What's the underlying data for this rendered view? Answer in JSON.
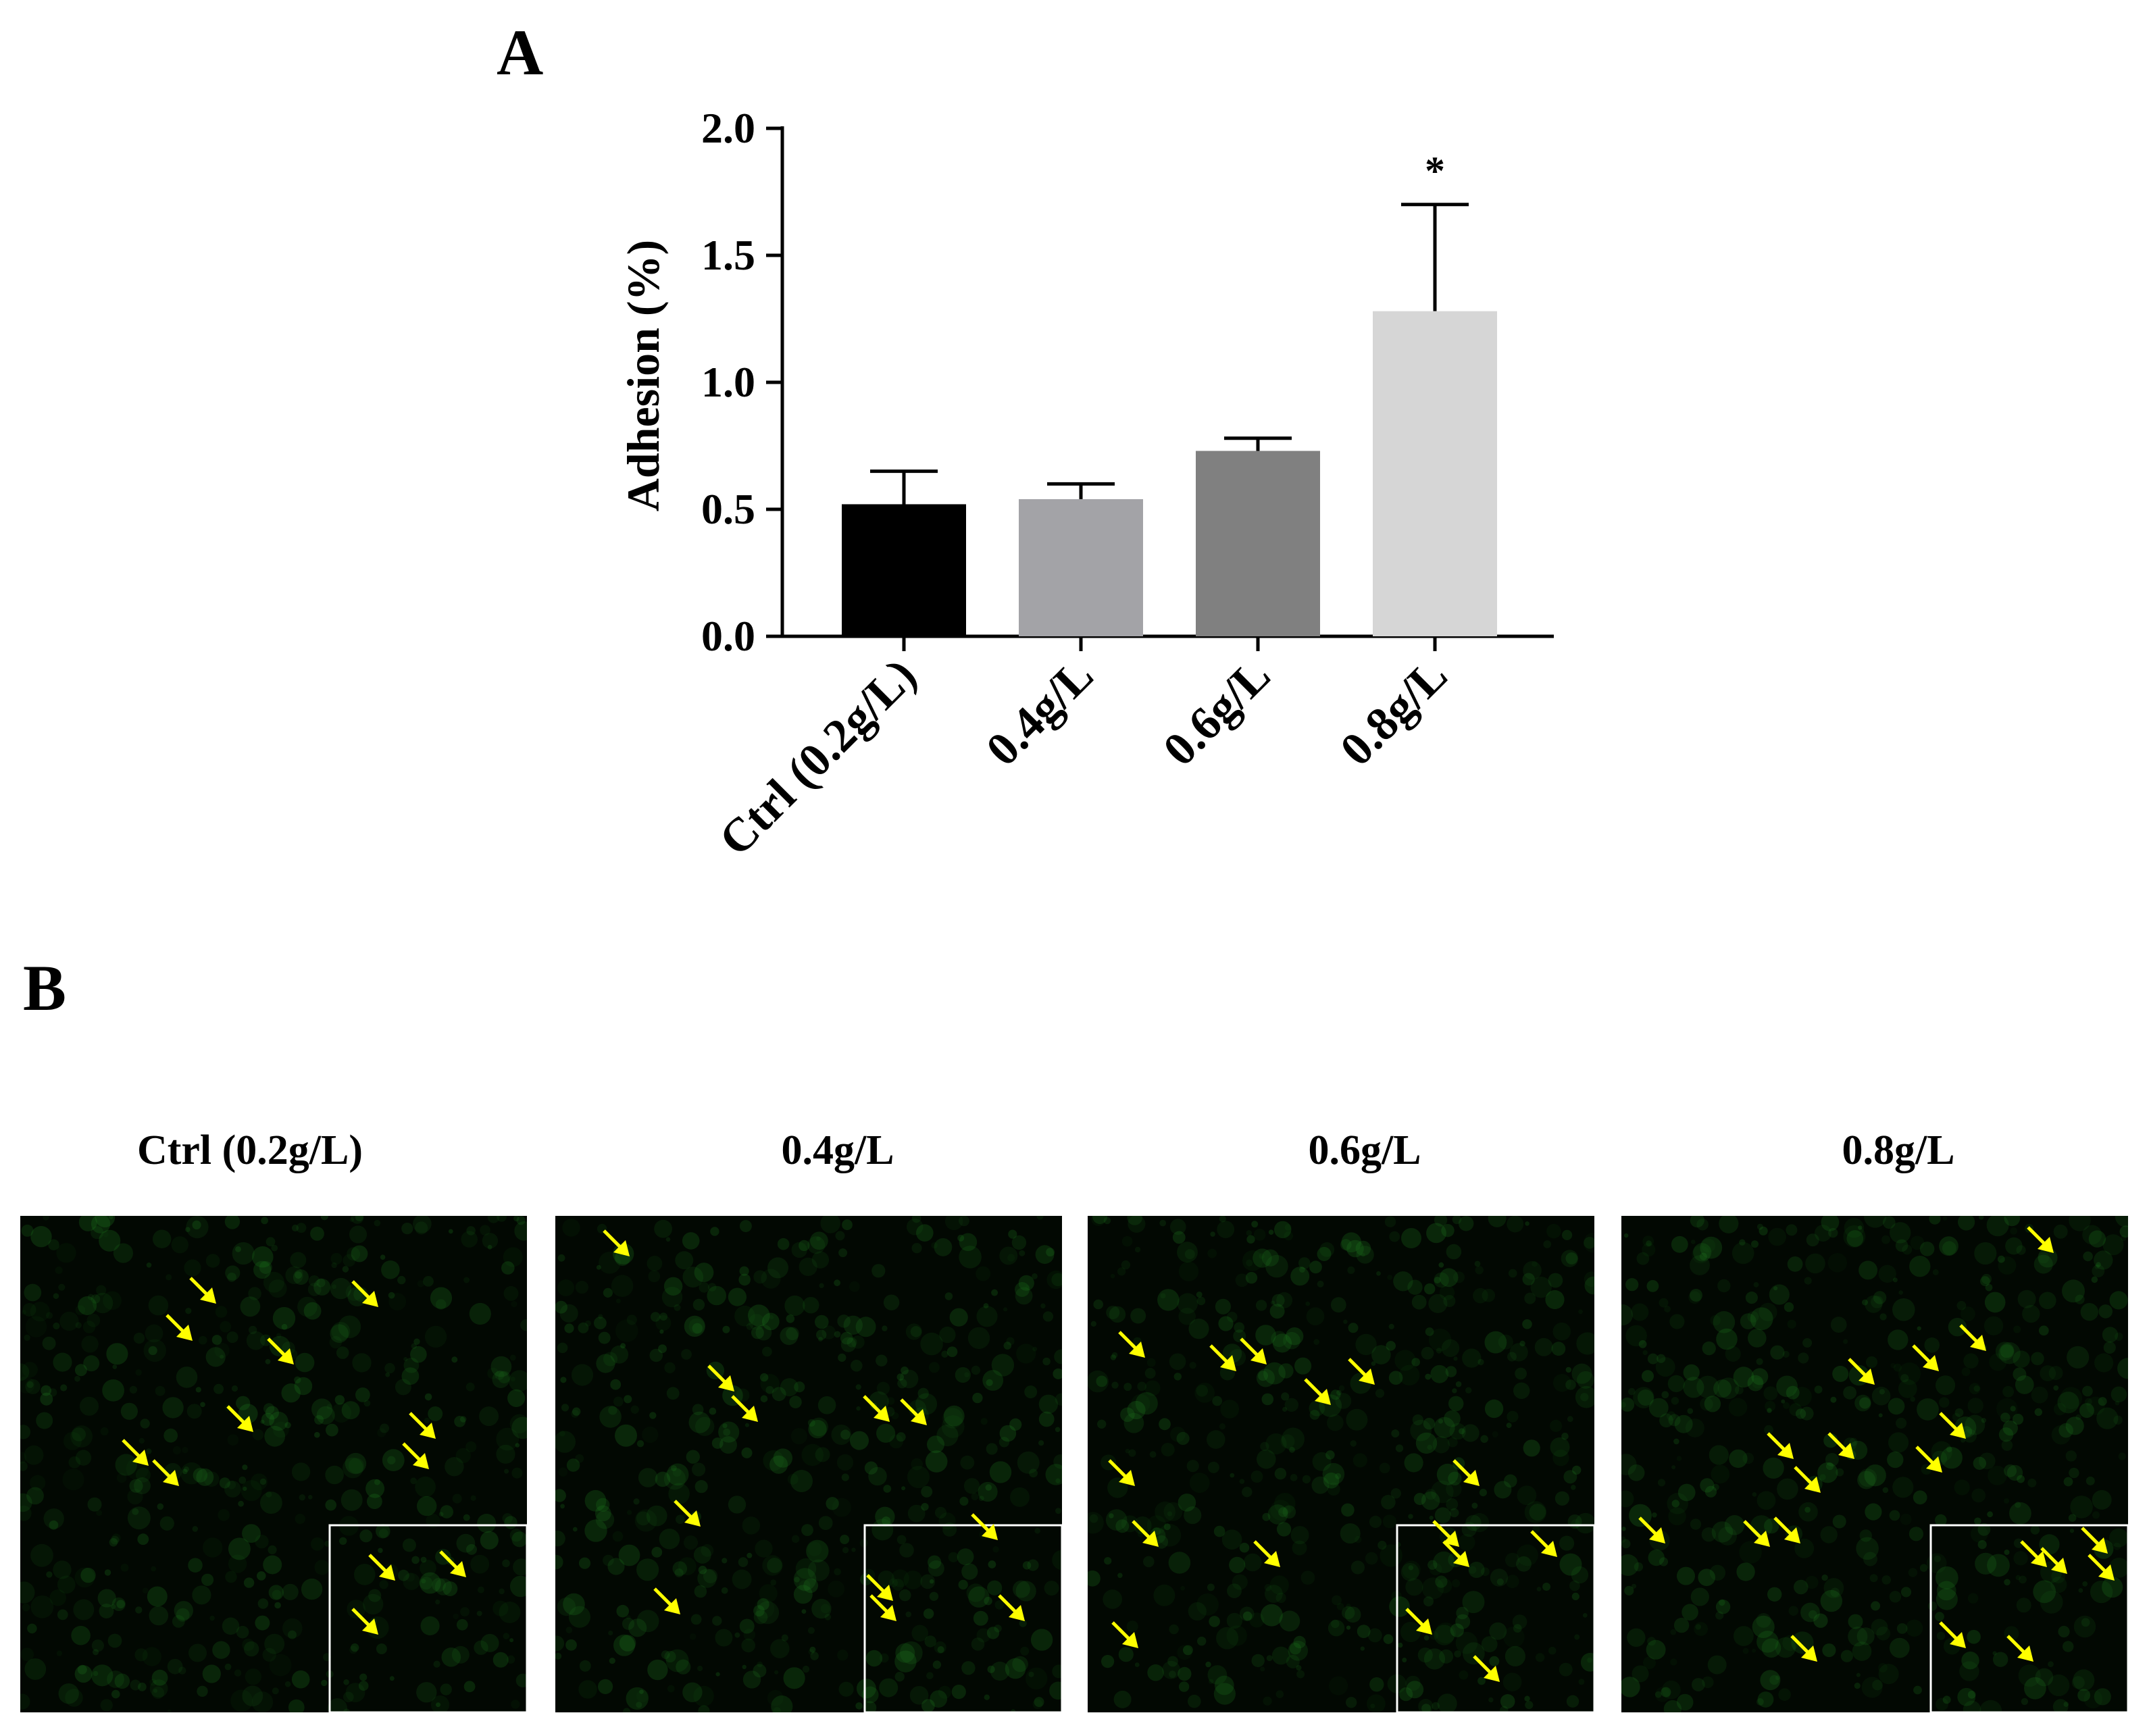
{
  "panel_a": {
    "letter": "A"
  },
  "panel_b": {
    "letter": "B",
    "images": [
      {
        "title": "Ctrl (0.2g/L)"
      },
      {
        "title": "0.4g/L"
      },
      {
        "title": "0.6g/L"
      },
      {
        "title": "0.8g/L"
      }
    ],
    "arrow_color": "#ffff00",
    "fluorescence_color": "#1f7a1f",
    "inset_border_color": "#ffffff"
  },
  "chart_data": {
    "type": "bar",
    "categories": [
      "Ctrl (0.2g/L)",
      "0.4g/L",
      "0.6g/L",
      "0.8g/L"
    ],
    "values": [
      0.52,
      0.54,
      0.73,
      1.28
    ],
    "error_upper": [
      0.65,
      0.6,
      0.78,
      1.7
    ],
    "significance": [
      "",
      "",
      "",
      "*"
    ],
    "bar_colors": [
      "#000000",
      "#a3a3a7",
      "#808080",
      "#d6d6d6"
    ],
    "title": "",
    "xlabel": "",
    "ylabel": "Adhesion (%)",
    "ylim": [
      0,
      2.0
    ],
    "yticks": [
      "0.0",
      "0.5",
      "1.0",
      "1.5",
      "2.0"
    ],
    "grid": false,
    "legend": "none"
  }
}
